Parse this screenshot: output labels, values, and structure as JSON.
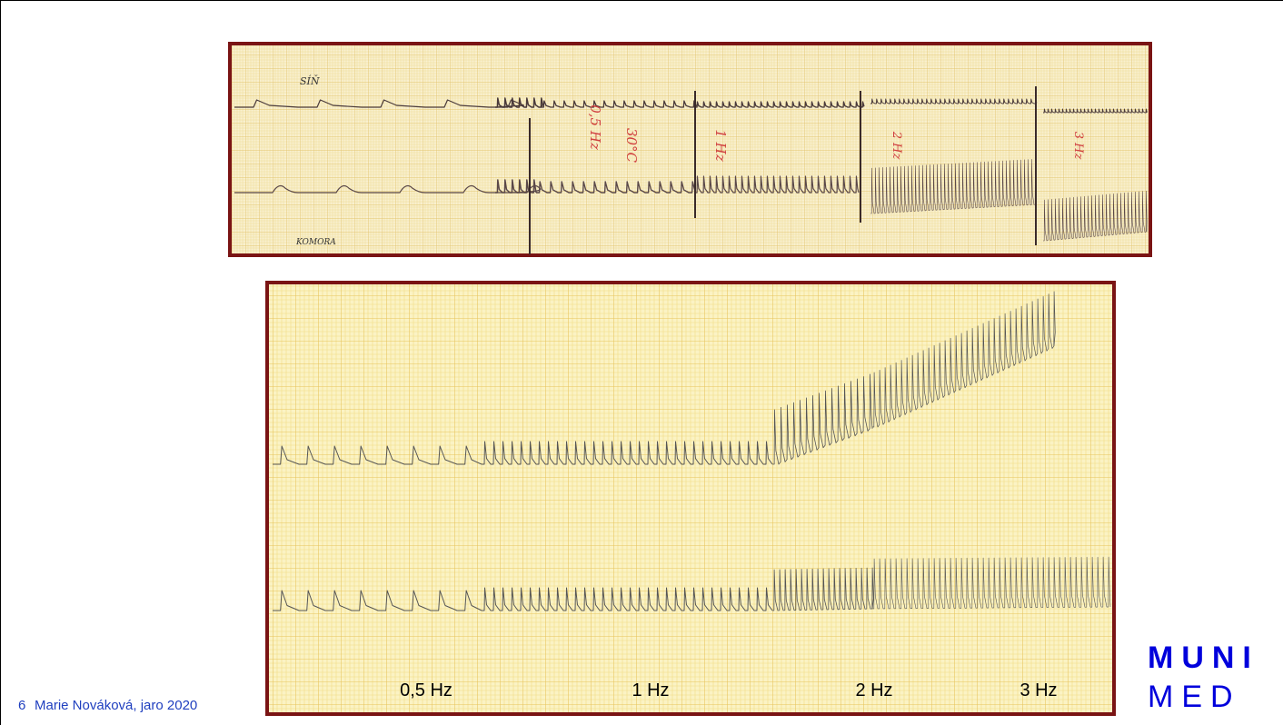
{
  "slide": {
    "number": "6",
    "footer": "Marie Nováková, jaro 2020",
    "logo": {
      "line1": "MUNI",
      "line2": "MED"
    }
  },
  "top_recording": {
    "atrium_label": "SÍŇ",
    "ventricle_label": "KOMORA",
    "annotations": [
      "0,5 Hz",
      "30°C",
      "1 Hz",
      "2 Hz",
      "3 Hz"
    ]
  },
  "bottom_recording": {
    "frequency_labels": [
      "0,5 Hz",
      "1 Hz",
      "2 Hz",
      "3 Hz"
    ]
  }
}
